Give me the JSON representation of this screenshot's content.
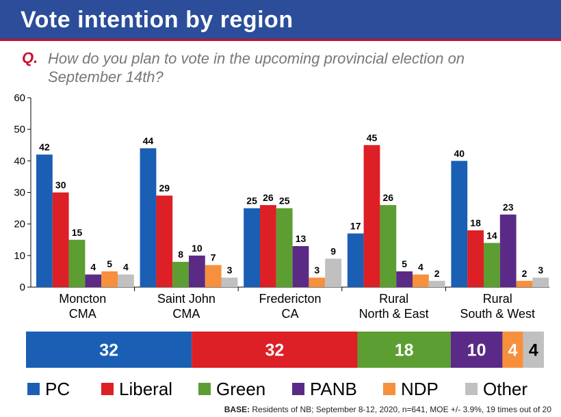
{
  "header": {
    "title": "Vote intention by region"
  },
  "question": {
    "label": "Q.",
    "text": "How do you plan to vote in the upcoming provincial election on September 14th?"
  },
  "colors": {
    "header_bg": "#2b4d9a",
    "PC": "#1a5fb4",
    "Liberal": "#dd1f26",
    "Green": "#5c9e31",
    "PANB": "#5b2a86",
    "NDP": "#f7903c",
    "Other": "#c0c0c0"
  },
  "chart_data": {
    "type": "bar",
    "ylim": [
      0,
      60
    ],
    "yticks": [
      0,
      10,
      20,
      30,
      40,
      50,
      60
    ],
    "categories": [
      [
        "Moncton",
        "CMA"
      ],
      [
        "Saint John",
        "CMA"
      ],
      [
        "Fredericton",
        "CA"
      ],
      [
        "Rural",
        "North & East"
      ],
      [
        "Rural",
        "South & West"
      ]
    ],
    "series": [
      {
        "name": "PC",
        "values": [
          42,
          44,
          25,
          17,
          40
        ]
      },
      {
        "name": "Liberal",
        "values": [
          30,
          29,
          26,
          45,
          18
        ]
      },
      {
        "name": "Green",
        "values": [
          15,
          8,
          25,
          26,
          14
        ]
      },
      {
        "name": "PANB",
        "values": [
          4,
          10,
          13,
          5,
          23
        ]
      },
      {
        "name": "NDP",
        "values": [
          5,
          7,
          3,
          4,
          2
        ]
      },
      {
        "name": "Other",
        "values": [
          4,
          3,
          9,
          2,
          3
        ]
      }
    ],
    "overall": [
      {
        "name": "PC",
        "value": 32
      },
      {
        "name": "Liberal",
        "value": 32
      },
      {
        "name": "Green",
        "value": 18
      },
      {
        "name": "PANB",
        "value": 10
      },
      {
        "name": "NDP",
        "value": 4
      },
      {
        "name": "Other",
        "value": 4
      }
    ],
    "legend_placement": "bottom",
    "grid": false
  },
  "footer": {
    "base_label": "BASE:",
    "base_text": " Residents of NB; September 8-12, 2020, n=641, MOE +/- 3.9%, 19 times out of 20"
  }
}
